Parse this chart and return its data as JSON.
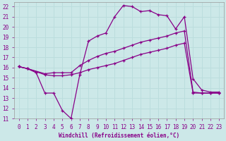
{
  "xlabel": "Windchill (Refroidissement éolien,°C)",
  "bg_color": "#cce8e8",
  "line_color": "#880088",
  "grid_color": "#bbdddd",
  "xlim": [
    -0.5,
    23.5
  ],
  "ylim": [
    11,
    22.4
  ],
  "xticks": [
    0,
    1,
    2,
    3,
    4,
    5,
    6,
    7,
    8,
    9,
    10,
    11,
    12,
    13,
    14,
    15,
    16,
    17,
    18,
    19,
    20,
    21,
    22,
    23
  ],
  "yticks": [
    11,
    12,
    13,
    14,
    15,
    16,
    17,
    18,
    19,
    20,
    21,
    22
  ],
  "line1_x": [
    0,
    1,
    2,
    3,
    4,
    5,
    6,
    7,
    8,
    9,
    10,
    11,
    12,
    13,
    14,
    15,
    16,
    17,
    18,
    19,
    20,
    21,
    22,
    23
  ],
  "line1_y": [
    16.1,
    15.9,
    15.5,
    13.5,
    13.5,
    11.8,
    11.0,
    15.3,
    18.6,
    19.1,
    19.4,
    21.0,
    22.1,
    22.0,
    21.5,
    21.6,
    21.2,
    21.1,
    19.8,
    21.0,
    14.9,
    13.8,
    13.6,
    13.6
  ],
  "line2_x": [
    0,
    1,
    3,
    4,
    5,
    6,
    7,
    8,
    9,
    10,
    11,
    12,
    13,
    14,
    15,
    16,
    17,
    18,
    19,
    20,
    21,
    22,
    23
  ],
  "line2_y": [
    16.1,
    15.9,
    15.4,
    15.5,
    15.5,
    15.5,
    16.2,
    16.7,
    17.1,
    17.4,
    17.6,
    17.9,
    18.2,
    18.5,
    18.7,
    18.9,
    19.1,
    19.4,
    19.6,
    13.6,
    13.5,
    13.5,
    13.5
  ],
  "line3_x": [
    0,
    1,
    3,
    4,
    5,
    6,
    7,
    8,
    9,
    10,
    11,
    12,
    13,
    14,
    15,
    16,
    17,
    18,
    19,
    20,
    21,
    22,
    23
  ],
  "line3_y": [
    16.1,
    15.9,
    15.3,
    15.2,
    15.2,
    15.3,
    15.5,
    15.8,
    16.0,
    16.2,
    16.4,
    16.7,
    17.0,
    17.3,
    17.5,
    17.7,
    17.9,
    18.2,
    18.4,
    13.5,
    13.5,
    13.5,
    13.5
  ]
}
